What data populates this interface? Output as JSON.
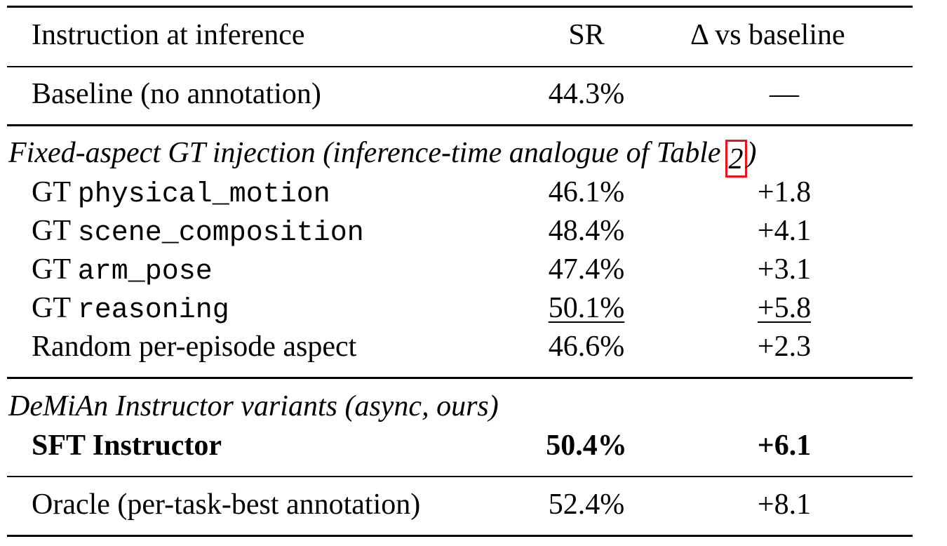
{
  "header": {
    "instruction": "Instruction at inference",
    "sr": "SR",
    "delta": "Δ vs baseline"
  },
  "baseline": {
    "label": "Baseline (no annotation)",
    "sr": "44.3%",
    "delta": "—"
  },
  "section_fixed": {
    "text": "Fixed-aspect GT injection (inference-time analogue of Table",
    "ref": "2",
    "close": ")"
  },
  "fixed_rows": [
    {
      "prefix": "GT",
      "code": "physical_motion",
      "sr": "46.1%",
      "delta": "+1.8"
    },
    {
      "prefix": "GT",
      "code": "scene_composition",
      "sr": "48.4%",
      "delta": "+4.1"
    },
    {
      "prefix": "GT",
      "code": "arm_pose",
      "sr": "47.4%",
      "delta": "+3.1"
    },
    {
      "prefix": "GT",
      "code": "reasoning",
      "sr": "50.1%",
      "delta": "+5.8"
    },
    {
      "label": "Random per-episode aspect",
      "sr": "46.6%",
      "delta": "+2.3"
    }
  ],
  "section_demian": {
    "text": "DeMiAn Instructor variants (async, ours)"
  },
  "sft": {
    "label": "SFT Instructor",
    "sr": "50.4%",
    "delta": "+6.1"
  },
  "oracle": {
    "label": "Oracle (per-task-best annotation)",
    "sr": "52.4%",
    "delta": "+8.1"
  },
  "colors": {
    "ref_highlight": "#e8141b"
  }
}
